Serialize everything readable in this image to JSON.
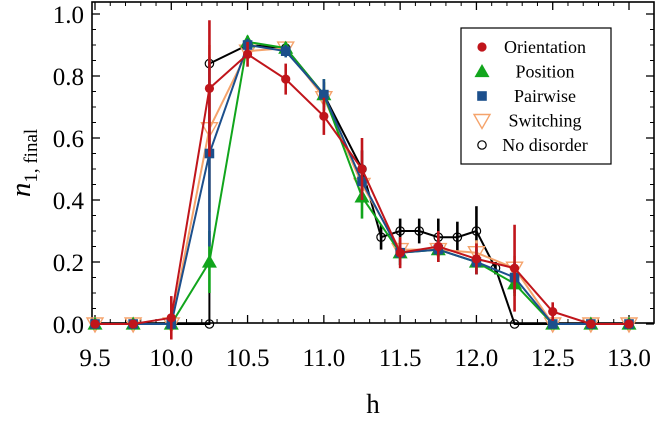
{
  "chart_data": {
    "type": "line",
    "xlabel": "h",
    "ylabel_main": "n",
    "ylabel_sub": "1, final",
    "xlim": [
      9.5,
      13.0
    ],
    "ylim": [
      0.0,
      1.0
    ],
    "xticks": [
      "9.5",
      "10.0",
      "10.5",
      "11.0",
      "11.5",
      "12.0",
      "12.5",
      "13.0"
    ],
    "xtick_values": [
      9.5,
      10.0,
      10.5,
      11.0,
      11.5,
      12.0,
      12.5,
      13.0
    ],
    "yticks": [
      "0.0",
      "0.2",
      "0.4",
      "0.6",
      "0.8",
      "1.0"
    ],
    "ytick_values": [
      0.0,
      0.2,
      0.4,
      0.6,
      0.8,
      1.0
    ],
    "grid": false,
    "legend_position": "top-right",
    "series": [
      {
        "name": "No disorder",
        "marker": "circle-open",
        "color": "#000000",
        "x": [
          9.5,
          9.75,
          10.0,
          10.25,
          10.25,
          10.5,
          10.75,
          11.0,
          11.25,
          11.375,
          11.5,
          11.625,
          11.75,
          11.875,
          12.0,
          12.125,
          12.25,
          12.5,
          12.75,
          13.0
        ],
        "y": [
          0.0,
          0.0,
          0.0,
          0.0,
          0.84,
          0.9,
          0.89,
          0.74,
          0.5,
          0.28,
          0.3,
          0.3,
          0.28,
          0.28,
          0.3,
          0.18,
          0.0,
          0.0,
          0.0,
          0.0
        ],
        "err": [
          0,
          0,
          0,
          0,
          0.02,
          0.01,
          0.01,
          0.04,
          0.06,
          0.04,
          0.04,
          0.04,
          0.06,
          0.05,
          0.08,
          0.02,
          0,
          0,
          0,
          0
        ]
      },
      {
        "name": "Switching",
        "marker": "triangle-down-open",
        "color": "#f5a36b",
        "x": [
          9.5,
          9.75,
          10.0,
          10.25,
          10.5,
          10.75,
          11.0,
          11.25,
          11.5,
          11.75,
          12.0,
          12.25,
          12.5,
          12.75,
          13.0
        ],
        "y": [
          0.0,
          0.0,
          0.0,
          0.63,
          0.88,
          0.89,
          0.73,
          0.45,
          0.24,
          0.24,
          0.23,
          0.18,
          0.0,
          0.0,
          0.0
        ],
        "err": [
          0,
          0,
          0,
          0.27,
          0.03,
          0.02,
          0.05,
          0.06,
          0.04,
          0.04,
          0.04,
          0.04,
          0.01,
          0,
          0
        ]
      },
      {
        "name": "Position",
        "marker": "triangle-up",
        "color": "#11a51c",
        "x": [
          9.5,
          9.75,
          10.0,
          10.25,
          10.5,
          10.75,
          11.0,
          11.25,
          11.5,
          11.75,
          12.0,
          12.25,
          12.5,
          12.75,
          13.0
        ],
        "y": [
          0.0,
          0.0,
          0.0,
          0.2,
          0.91,
          0.89,
          0.74,
          0.41,
          0.23,
          0.24,
          0.2,
          0.13,
          0.0,
          0.0,
          0.0
        ],
        "err": [
          0,
          0,
          0,
          0.1,
          0.02,
          0.02,
          0.05,
          0.07,
          0.04,
          0.04,
          0.04,
          0.04,
          0.01,
          0,
          0
        ]
      },
      {
        "name": "Pairwise",
        "marker": "square",
        "color": "#1c4f8c",
        "x": [
          9.5,
          9.75,
          10.0,
          10.25,
          10.5,
          10.75,
          11.0,
          11.25,
          11.5,
          11.75,
          12.0,
          12.25,
          12.5,
          12.75,
          13.0
        ],
        "y": [
          0.0,
          0.0,
          0.0,
          0.55,
          0.9,
          0.88,
          0.74,
          0.46,
          0.23,
          0.24,
          0.2,
          0.15,
          0.0,
          0.0,
          0.0
        ],
        "err": [
          0,
          0,
          0,
          0.3,
          0.02,
          0.02,
          0.05,
          0.06,
          0.04,
          0.04,
          0.04,
          0.05,
          0.01,
          0,
          0
        ]
      },
      {
        "name": "Orientation",
        "marker": "circle",
        "color": "#c0151b",
        "x": [
          9.5,
          9.75,
          10.0,
          10.25,
          10.5,
          10.75,
          11.0,
          11.25,
          11.5,
          11.75,
          12.0,
          12.25,
          12.5,
          12.75,
          13.0
        ],
        "y": [
          0.0,
          0.0,
          0.02,
          0.76,
          0.87,
          0.79,
          0.67,
          0.5,
          0.23,
          0.25,
          0.21,
          0.18,
          0.04,
          0.0,
          0.0
        ],
        "err": [
          0,
          0,
          0.07,
          0.22,
          0.04,
          0.05,
          0.06,
          0.1,
          0.05,
          0.05,
          0.05,
          0.14,
          0.03,
          0,
          0
        ]
      }
    ],
    "legend_order": [
      "Orientation",
      "Position",
      "Pairwise",
      "Switching",
      "No disorder"
    ]
  }
}
